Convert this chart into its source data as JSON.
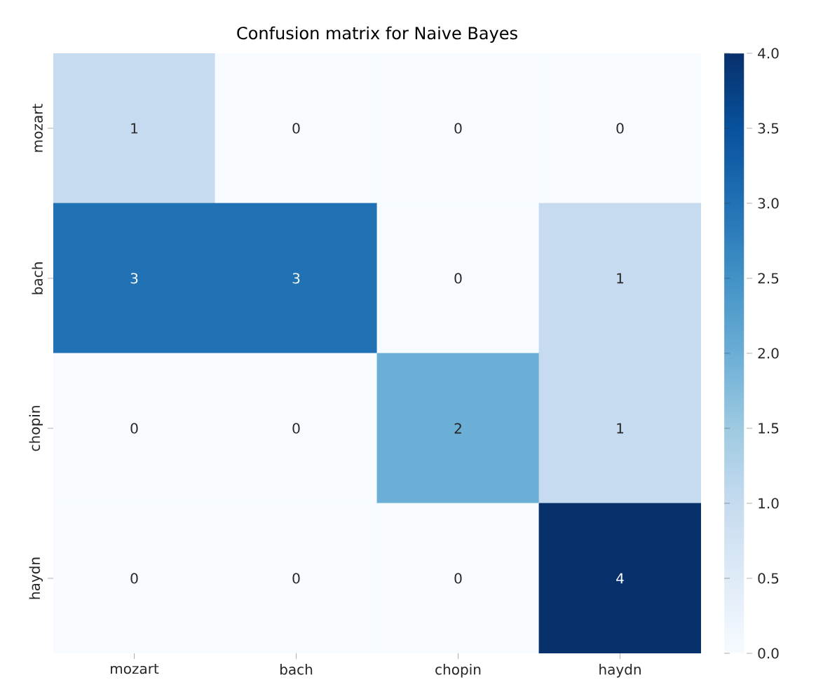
{
  "chart_data": {
    "type": "heatmap",
    "title": "Confusion matrix for Naive Bayes",
    "categories": [
      "mozart",
      "bach",
      "chopin",
      "haydn"
    ],
    "y_categories": [
      "mozart",
      "bach",
      "chopin",
      "haydn"
    ],
    "cells": [
      [
        1,
        0,
        0,
        0
      ],
      [
        3,
        3,
        0,
        1
      ],
      [
        0,
        0,
        2,
        1
      ],
      [
        0,
        0,
        0,
        4
      ]
    ],
    "data_labels": true,
    "clim": [
      0,
      4
    ],
    "cticks": [
      {
        "value": 0,
        "label": "0.0"
      },
      {
        "value": 0.5,
        "label": "0.5"
      },
      {
        "value": 1,
        "label": "1.0"
      },
      {
        "value": 1.5,
        "label": "1.5"
      },
      {
        "value": 2,
        "label": "2.0"
      },
      {
        "value": 2.5,
        "label": "2.5"
      },
      {
        "value": 3,
        "label": "3.0"
      },
      {
        "value": 3.5,
        "label": "3.5"
      },
      {
        "value": 4,
        "label": "4.0"
      }
    ]
  }
}
